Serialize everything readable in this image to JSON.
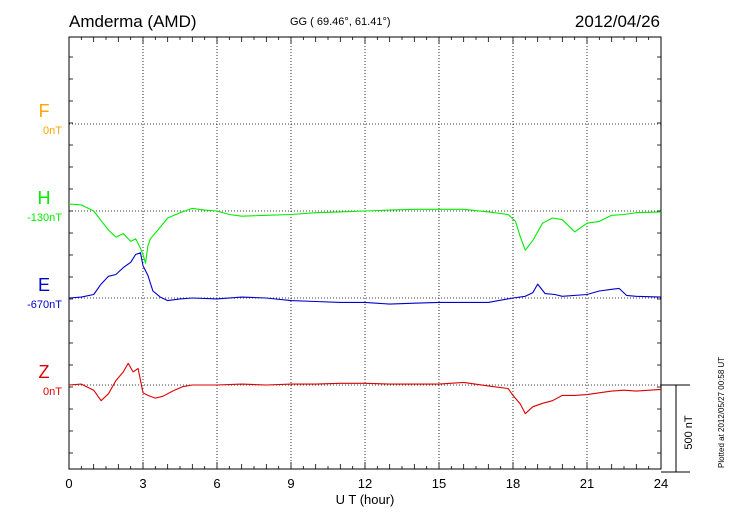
{
  "header": {
    "station": "Amderma (AMD)",
    "coords": "GG ( 69.46°,  61.41°)",
    "date": "2012/04/26"
  },
  "footnote": "Plotted at 2012/05/27 00:58 UT",
  "chart_data": {
    "type": "line",
    "xlabel": "U T (hour)",
    "xlim": [
      0,
      24
    ],
    "x_ticks": [
      0,
      3,
      6,
      9,
      12,
      15,
      18,
      21,
      24
    ],
    "scale_bar": {
      "label": "500 nT",
      "value_nT": 500
    },
    "series": [
      {
        "name": "F",
        "baseline_label": "0nT",
        "baseline_nT": 0,
        "color": "#ffa500",
        "level": 1,
        "x": [],
        "y": []
      },
      {
        "name": "H",
        "baseline_label": "-130nT",
        "baseline_nT": -130,
        "color": "#00ee00",
        "level": 2,
        "x": [
          0,
          0.5,
          1.0,
          1.3,
          1.6,
          1.9,
          2.2,
          2.5,
          2.7,
          2.9,
          3.0,
          3.1,
          3.2,
          3.3,
          3.6,
          4.0,
          4.5,
          5.0,
          5.5,
          6.0,
          6.5,
          7.0,
          8.0,
          9.0,
          10.0,
          11.0,
          12.0,
          13.0,
          14.0,
          15.0,
          16.0,
          17.0,
          17.8,
          18.1,
          18.3,
          18.5,
          18.8,
          19.2,
          19.6,
          20.0,
          20.5,
          21.0,
          21.5,
          22.0,
          22.5,
          23.0,
          24.0
        ],
        "y": [
          40,
          35,
          0,
          -55,
          -110,
          -150,
          -130,
          -175,
          -160,
          -215,
          -250,
          -300,
          -200,
          -160,
          -110,
          -40,
          -10,
          15,
          5,
          0,
          -20,
          -30,
          -25,
          -20,
          -10,
          -5,
          0,
          5,
          10,
          10,
          10,
          -5,
          -20,
          -60,
          -150,
          -225,
          -170,
          -70,
          -40,
          -50,
          -120,
          -70,
          -60,
          -25,
          -20,
          -10,
          -5
        ]
      },
      {
        "name": "E",
        "baseline_label": "-670nT",
        "baseline_nT": -670,
        "color": "#0000cc",
        "level": 3,
        "x": [
          0,
          0.5,
          1.0,
          1.3,
          1.6,
          1.9,
          2.2,
          2.5,
          2.7,
          2.9,
          3.0,
          3.2,
          3.4,
          3.7,
          4.0,
          4.5,
          5.0,
          6.0,
          7.0,
          8.0,
          9.0,
          10.0,
          11.0,
          12.0,
          13.0,
          14.0,
          15.0,
          16.0,
          17.0,
          18.0,
          18.5,
          18.8,
          19.0,
          19.3,
          19.7,
          20.0,
          21.0,
          21.5,
          22.0,
          22.3,
          22.6,
          23.0,
          24.0
        ],
        "y": [
          0,
          5,
          20,
          80,
          125,
          135,
          175,
          205,
          250,
          260,
          185,
          130,
          40,
          5,
          -15,
          -5,
          0,
          -5,
          5,
          0,
          -15,
          -20,
          -25,
          -25,
          -35,
          -30,
          -25,
          -25,
          -25,
          0,
          10,
          30,
          80,
          25,
          20,
          10,
          20,
          40,
          50,
          55,
          15,
          10,
          5
        ]
      },
      {
        "name": "Z",
        "baseline_label": "0nT",
        "baseline_nT": 0,
        "color": "#dd0000",
        "level": 4,
        "x": [
          0,
          0.5,
          1.0,
          1.3,
          1.6,
          1.9,
          2.2,
          2.4,
          2.6,
          2.8,
          3.0,
          3.2,
          3.5,
          3.8,
          4.2,
          4.6,
          5.0,
          6.0,
          7.0,
          8.0,
          9.0,
          10.0,
          11.0,
          12.0,
          13.0,
          14.0,
          15.0,
          16.0,
          17.0,
          17.8,
          18.0,
          18.3,
          18.5,
          18.8,
          19.2,
          19.6,
          20.0,
          20.5,
          21.0,
          21.5,
          22.0,
          22.5,
          23.0,
          24.0
        ],
        "y": [
          0,
          5,
          -30,
          -90,
          -50,
          25,
          75,
          125,
          75,
          95,
          -45,
          -60,
          -75,
          -65,
          -35,
          -10,
          0,
          0,
          5,
          0,
          5,
          5,
          10,
          10,
          5,
          5,
          5,
          15,
          -5,
          -20,
          -60,
          -110,
          -165,
          -125,
          -105,
          -90,
          -60,
          -60,
          -55,
          -45,
          -35,
          -30,
          -35,
          -25
        ]
      }
    ]
  }
}
